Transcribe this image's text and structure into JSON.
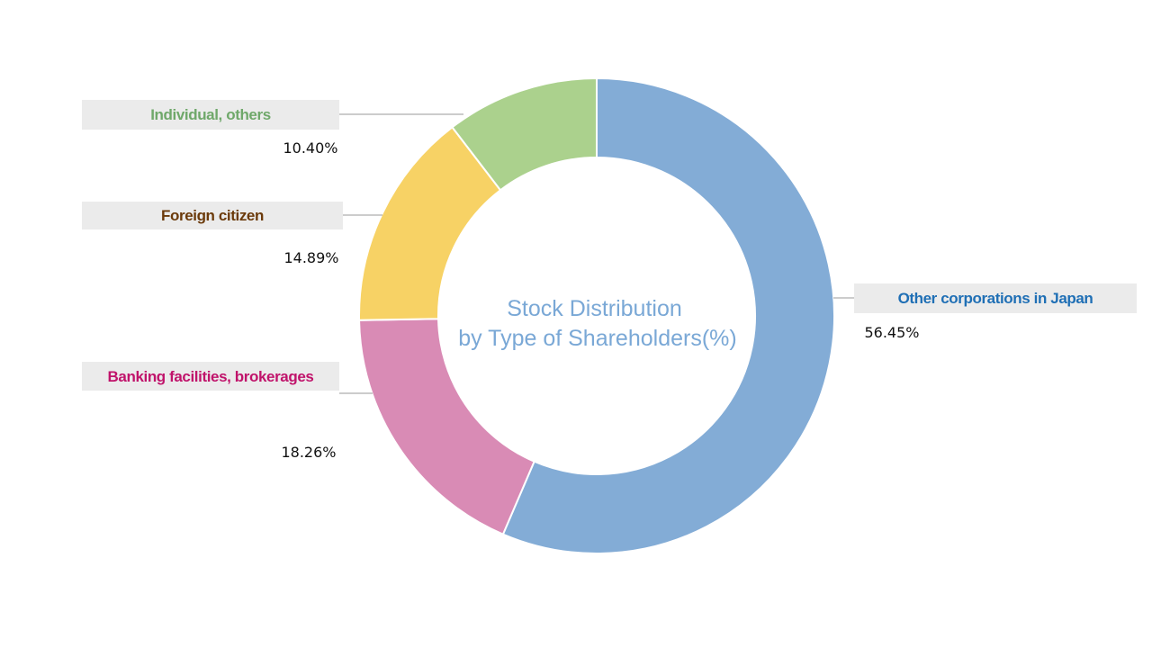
{
  "chart_data": {
    "type": "pie",
    "title_lines": [
      "Stock Distribution",
      "by Type of Shareholders(%)"
    ],
    "slices": [
      {
        "label": "Other corporations in Japan",
        "value": 56.45,
        "value_label": "56.45%",
        "color": "#83acd6",
        "label_color": "#1f6fb5"
      },
      {
        "label": "Banking facilities, brokerages",
        "value": 18.26,
        "value_label": "18.26%",
        "color": "#d98bb5",
        "label_color": "#c0136b"
      },
      {
        "label": "Foreign citizen",
        "value": 14.89,
        "value_label": "14.89%",
        "color": "#f7d265",
        "label_color": "#6b3a0a"
      },
      {
        "label": "Individual, others",
        "value": 10.4,
        "value_label": "10.40%",
        "color": "#abd18d",
        "label_color": "#6fa86a"
      }
    ]
  }
}
